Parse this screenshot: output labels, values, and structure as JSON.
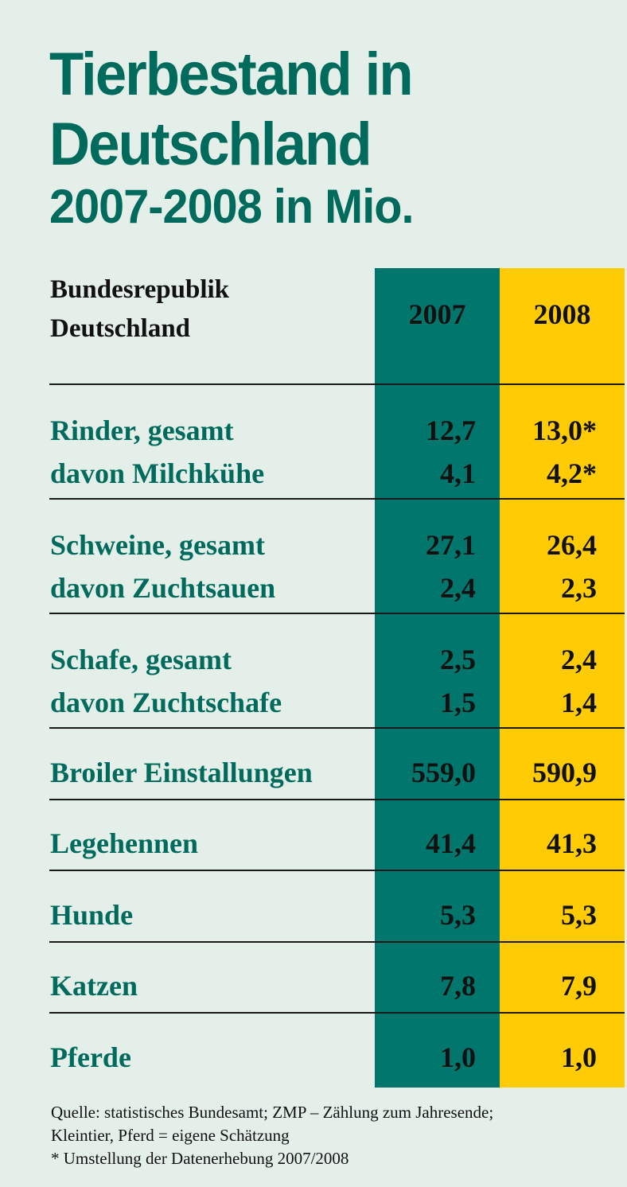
{
  "title": {
    "line1": "Tierbestand in",
    "line2": "Deutschland",
    "line3": "2007-2008 in Mio."
  },
  "header": {
    "label_line1": "Bundesrepublik",
    "label_line2": "Deutschland",
    "year_2007": "2007",
    "year_2008": "2008"
  },
  "colors": {
    "title": "#006b5c",
    "col_2007": "#00766c",
    "col_2008": "#ffcb05",
    "background": "#e4efe9"
  },
  "chart_data": {
    "type": "table",
    "columns": [
      "2007",
      "2008"
    ],
    "rows": [
      {
        "label": "Rinder, gesamt",
        "v2007": "12,7",
        "v2008": "13,0*"
      },
      {
        "label": "davon Milchkühe",
        "v2007": "4,1",
        "v2008": "4,2*"
      },
      {
        "label": "Schweine, gesamt",
        "v2007": "27,1",
        "v2008": "26,4"
      },
      {
        "label": "davon Zuchtsauen",
        "v2007": "2,4",
        "v2008": "2,3"
      },
      {
        "label": "Schafe, gesamt",
        "v2007": "2,5",
        "v2008": "2,4"
      },
      {
        "label": "davon Zuchtschafe",
        "v2007": "1,5",
        "v2008": "1,4"
      },
      {
        "label": "Broiler Einstallungen",
        "v2007": "559,0",
        "v2008": "590,9"
      },
      {
        "label": "Legehennen",
        "v2007": "41,4",
        "v2008": "41,3"
      },
      {
        "label": "Hunde",
        "v2007": "5,3",
        "v2008": "5,3"
      },
      {
        "label": "Katzen",
        "v2007": "7,8",
        "v2008": "7,9"
      },
      {
        "label": "Pferde",
        "v2007": "1,0",
        "v2008": "1,0"
      }
    ]
  },
  "footer": {
    "line1": "Quelle: statistisches Bundesamt; ZMP – Zählung zum Jahresende;",
    "line2": "Kleintier, Pferd = eigene Schätzung",
    "line3": "* Umstellung der Datenerhebung 2007/2008"
  }
}
